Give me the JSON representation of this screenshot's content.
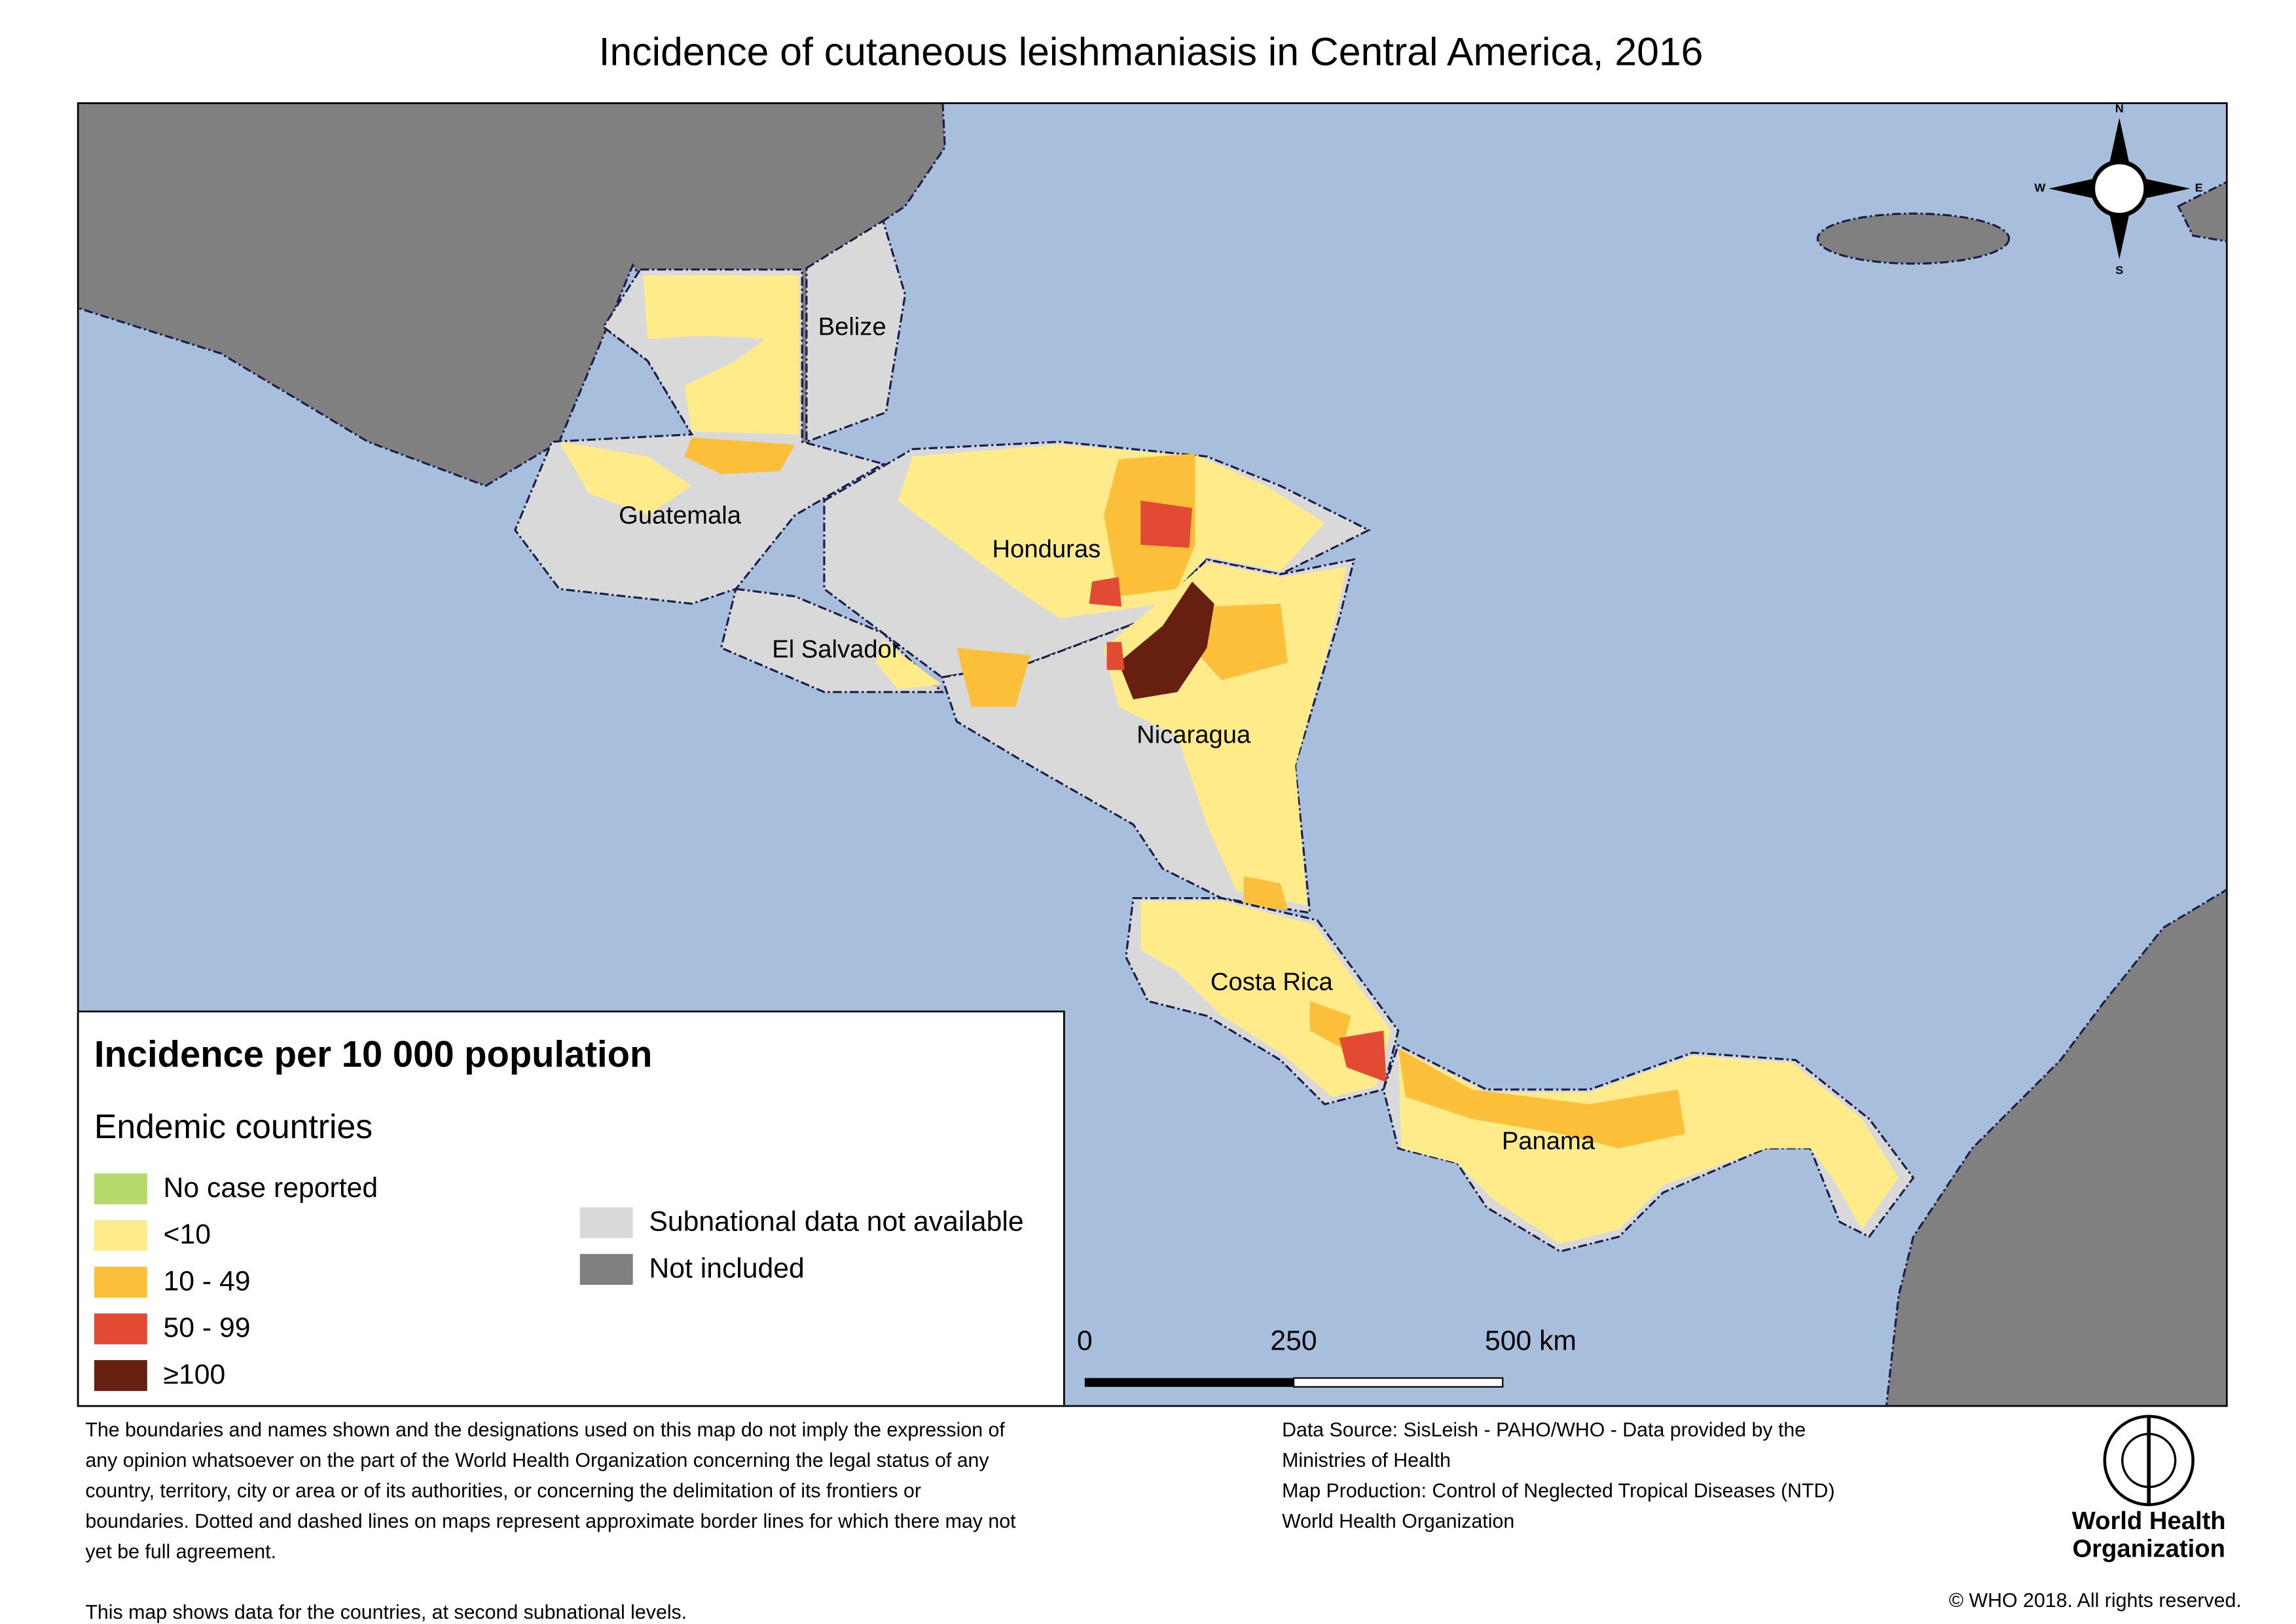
{
  "title": "Incidence of cutaneous leishmaniasis in Central America, 2016",
  "map": {
    "countries": [
      "Belize",
      "Guatemala",
      "Honduras",
      "El Salvador",
      "Nicaragua",
      "Costa Rica",
      "Panama"
    ],
    "compass": {
      "n": "N",
      "s": "S",
      "e": "E",
      "w": "W"
    },
    "scale_bar": [
      "0",
      "250",
      "500 km"
    ]
  },
  "legend": {
    "title": "Incidence per 10 000 population",
    "subtitle": "Endemic countries",
    "items": [
      {
        "label": "No case reported",
        "color": "#b5d96a"
      },
      {
        "label": "<10",
        "color": "#ffeb8a"
      },
      {
        "label": "10 - 49",
        "color": "#fbbf3a"
      },
      {
        "label": "50 - 99",
        "color": "#e34a33"
      },
      {
        "label": "≥100",
        "color": "#67200f"
      }
    ],
    "other_items": [
      {
        "label": "Subnational data not available",
        "color": "#d9d9d9"
      },
      {
        "label": "Not included",
        "color": "#808080"
      }
    ]
  },
  "footer": {
    "disclaimer": [
      "The boundaries and names shown and the designations used on this map do not imply the expression of",
      "any opinion whatsoever on the part of the World Health Organization concerning the legal status of any",
      "country, territory, city or area or of its authorities, or concerning the delimitation of its frontiers or",
      "boundaries. Dotted and dashed lines on maps represent approximate border lines for which there may not",
      "yet be full agreement."
    ],
    "note": "This map shows data for the countries, at second subnational levels.",
    "data_source": [
      "Data Source: SisLeish - PAHO/WHO - Data provided by the",
      "Ministries of Health",
      "Map Production: Control of Neglected Tropical Diseases (NTD)",
      "World Health Organization"
    ],
    "logo": [
      "World Health",
      "Organization"
    ],
    "copyright": "© WHO 2018. All rights reserved."
  }
}
